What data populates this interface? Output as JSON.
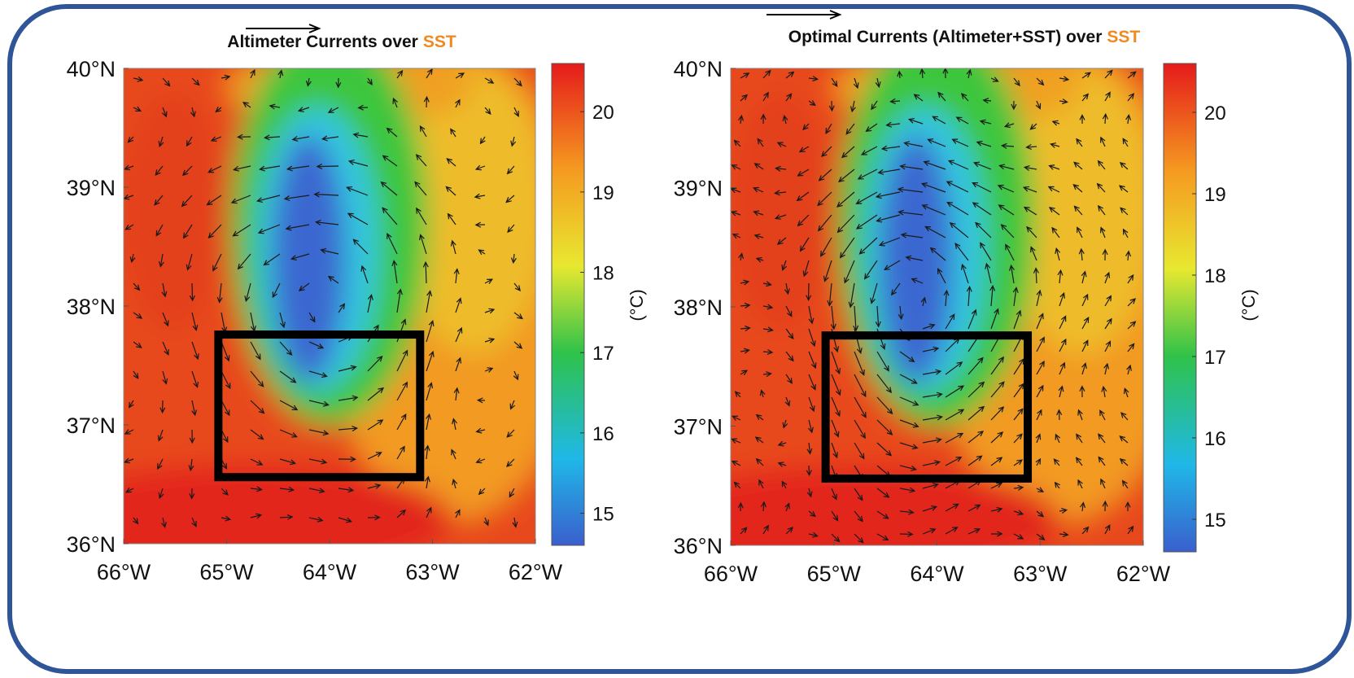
{
  "panels": [
    {
      "title": "Altimeter Currents over",
      "title_highlight": "SST",
      "xlim": [
        -66,
        -62
      ],
      "ylim": [
        36,
        40
      ],
      "xticks": [
        {
          "value": -66,
          "label": "66°W"
        },
        {
          "value": -65,
          "label": "65°W"
        },
        {
          "value": -64,
          "label": "64°W"
        },
        {
          "value": -63,
          "label": "63°W"
        },
        {
          "value": -62,
          "label": "62°W"
        }
      ],
      "yticks": [
        {
          "value": 36,
          "label": "36°N"
        },
        {
          "value": 37,
          "label": "37°N"
        },
        {
          "value": 38,
          "label": "38°N"
        },
        {
          "value": 39,
          "label": "39°N"
        },
        {
          "value": 40,
          "label": "40°N"
        }
      ],
      "colorbar": {
        "label": "(°C)",
        "lim": [
          14.6,
          20.6
        ],
        "ticks": [
          15,
          16,
          17,
          18,
          19,
          20
        ]
      }
    },
    {
      "title": "Optimal Currents (Altimeter+SST) over",
      "title_highlight": "SST",
      "xlim": [
        -66,
        -62
      ],
      "ylim": [
        36,
        40
      ],
      "xticks": [
        {
          "value": -66,
          "label": "66°W"
        },
        {
          "value": -65,
          "label": "65°W"
        },
        {
          "value": -64,
          "label": "64°W"
        },
        {
          "value": -63,
          "label": "63°W"
        },
        {
          "value": -62,
          "label": "62°W"
        }
      ],
      "yticks": [
        {
          "value": 36,
          "label": "36°N"
        },
        {
          "value": 37,
          "label": "37°N"
        },
        {
          "value": 38,
          "label": "38°N"
        },
        {
          "value": 39,
          "label": "39°N"
        },
        {
          "value": 40,
          "label": "40°N"
        }
      ],
      "colorbar": {
        "label": "(°C)",
        "lim": [
          14.6,
          20.6
        ],
        "ticks": [
          15,
          16,
          17,
          18,
          19,
          20
        ]
      }
    }
  ]
}
